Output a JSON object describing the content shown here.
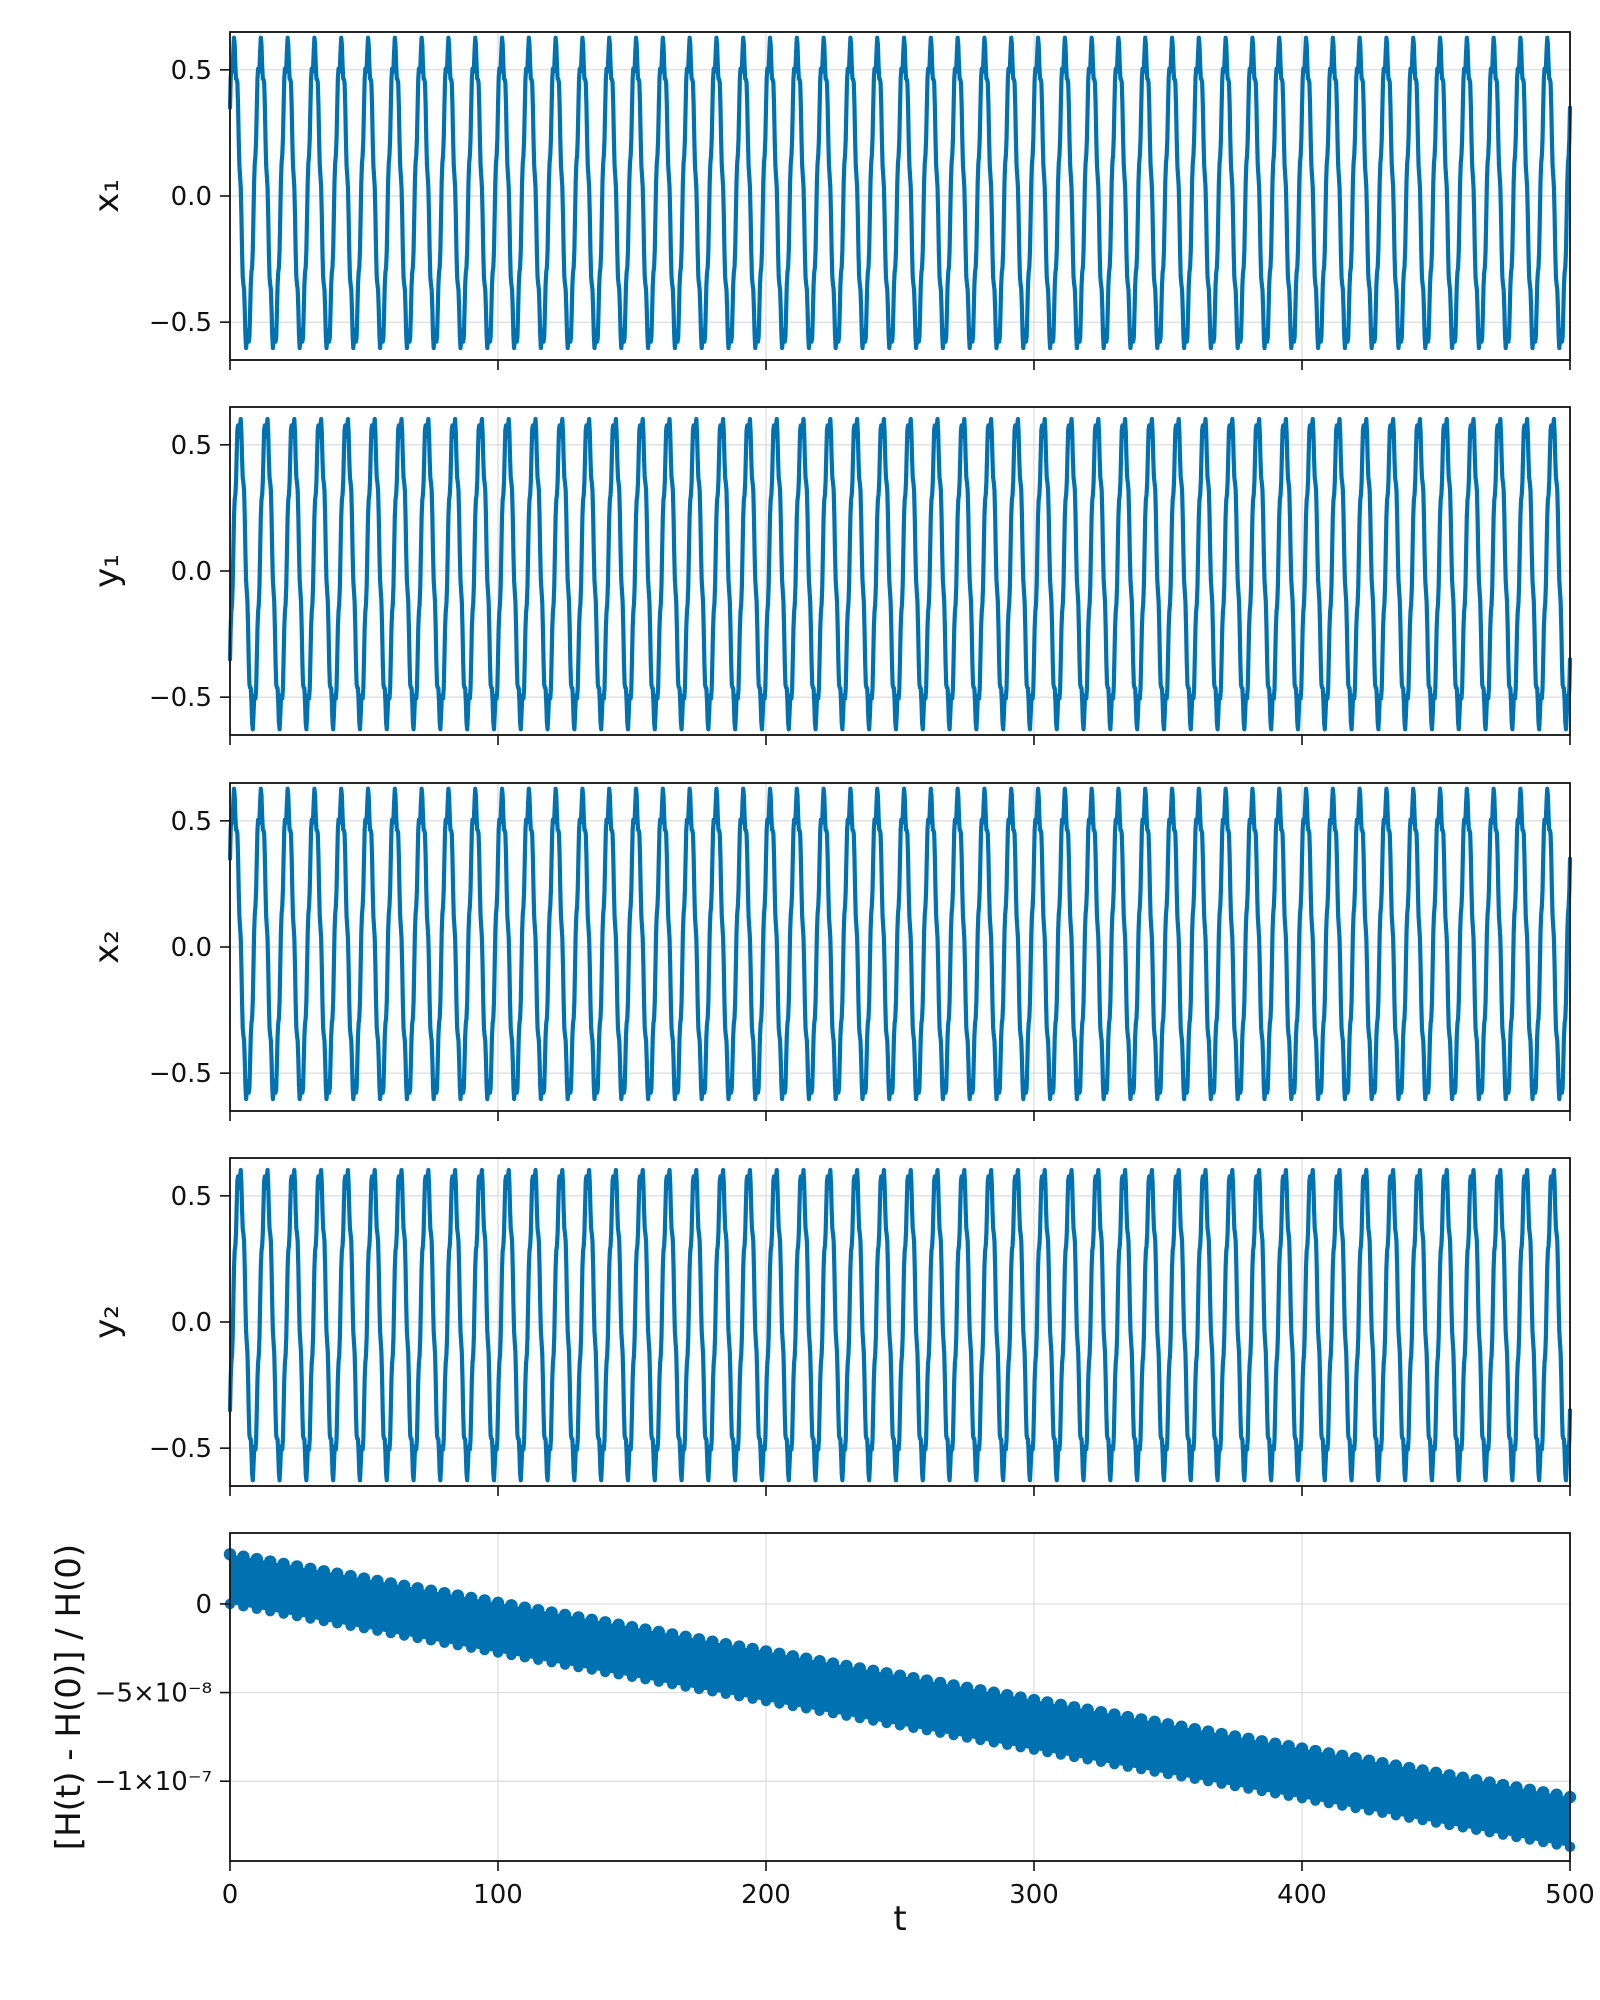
{
  "chart_data": [
    {
      "type": "line",
      "ylabel": "x₁",
      "xlim": [
        0,
        500
      ],
      "ylim": [
        -0.65,
        0.65
      ],
      "yticks": [
        {
          "value": 0.5,
          "label": "0.5"
        },
        {
          "value": 0.0,
          "label": "0.0"
        },
        {
          "value": -0.5,
          "label": "−0.5"
        }
      ],
      "xticks": [
        0,
        100,
        200,
        300,
        400,
        500
      ],
      "show_xtick_labels": false,
      "grid": true,
      "color": "#0072b2",
      "series": [
        {
          "amplitude": 0.58,
          "period": 10,
          "start": 0.35,
          "x_range": [
            0,
            500
          ],
          "ripple": 0.05
        }
      ]
    },
    {
      "type": "line",
      "ylabel": "y₁",
      "xlim": [
        0,
        500
      ],
      "ylim": [
        -0.65,
        0.65
      ],
      "yticks": [
        {
          "value": 0.5,
          "label": "0.5"
        },
        {
          "value": 0.0,
          "label": "0.0"
        },
        {
          "value": -0.5,
          "label": "−0.5"
        }
      ],
      "xticks": [
        0,
        100,
        200,
        300,
        400,
        500
      ],
      "show_xtick_labels": false,
      "grid": true,
      "color": "#0072b2",
      "series": [
        {
          "amplitude": 0.58,
          "period": 10,
          "start": -0.35,
          "x_range": [
            0,
            500
          ],
          "ripple": 0.05
        }
      ]
    },
    {
      "type": "line",
      "ylabel": "x₂",
      "xlim": [
        0,
        500
      ],
      "ylim": [
        -0.65,
        0.65
      ],
      "yticks": [
        {
          "value": 0.5,
          "label": "0.5"
        },
        {
          "value": 0.0,
          "label": "0.0"
        },
        {
          "value": -0.5,
          "label": "−0.5"
        }
      ],
      "xticks": [
        0,
        100,
        200,
        300,
        400,
        500
      ],
      "show_xtick_labels": false,
      "grid": true,
      "color": "#0072b2",
      "series": [
        {
          "amplitude": 0.58,
          "period": 10,
          "start": 0.35,
          "x_range": [
            0,
            500
          ],
          "ripple": 0.05
        }
      ]
    },
    {
      "type": "line",
      "ylabel": "y₂",
      "xlim": [
        0,
        500
      ],
      "ylim": [
        -0.65,
        0.65
      ],
      "yticks": [
        {
          "value": 0.5,
          "label": "0.5"
        },
        {
          "value": 0.0,
          "label": "0.0"
        },
        {
          "value": -0.5,
          "label": "−0.5"
        }
      ],
      "xticks": [
        0,
        100,
        200,
        300,
        400,
        500
      ],
      "show_xtick_labels": false,
      "grid": true,
      "color": "#0072b2",
      "series": [
        {
          "amplitude": 0.58,
          "period": 10,
          "start": -0.35,
          "x_range": [
            0,
            500
          ],
          "ripple": 0.05
        }
      ]
    },
    {
      "type": "scatter",
      "ylabel": "[H(t) - H(0)] / H(0)",
      "xlabel": "t",
      "xlim": [
        0,
        500
      ],
      "ylim": [
        -1.45e-07,
        4e-08
      ],
      "yticks": [
        {
          "value": 0,
          "label": "0"
        },
        {
          "value": -5e-08,
          "label": "−5×10⁻⁸"
        },
        {
          "value": -1e-07,
          "label": "−1×10⁻⁷"
        }
      ],
      "xticks": [
        0,
        100,
        200,
        300,
        400,
        500
      ],
      "xtick_labels": [
        "0",
        "100",
        "200",
        "300",
        "400",
        "500"
      ],
      "show_xtick_labels": true,
      "grid": true,
      "color": "#0072b2",
      "series": [
        {
          "lower": [
            [
              0,
              0
            ],
            [
              500,
              -1.37e-07
            ]
          ],
          "upper": [
            [
              0,
              2.8e-08
            ],
            [
              500,
              -1.09e-07
            ]
          ],
          "x_range": [
            0,
            500
          ],
          "period": 5
        }
      ]
    }
  ]
}
